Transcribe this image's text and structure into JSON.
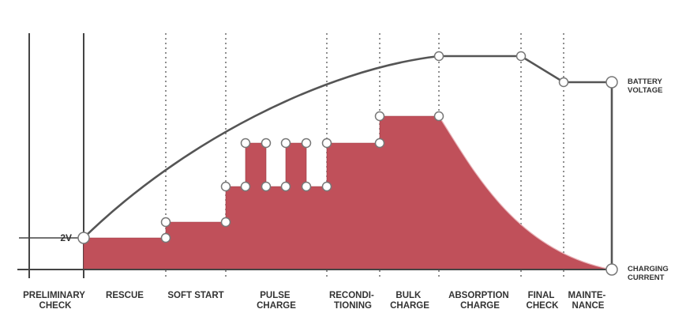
{
  "diagram": {
    "voltage_label": [
      "BATTERY",
      "VOLTAGE"
    ],
    "current_label": [
      "CHARGING",
      "CURRENT"
    ],
    "start_voltage_label": "2V",
    "stages": [
      {
        "id": "preliminary",
        "lines": [
          "PRELIMINARY",
          "CHECK"
        ]
      },
      {
        "id": "rescue",
        "lines": [
          "RESCUE"
        ]
      },
      {
        "id": "soft-start",
        "lines": [
          "SOFT START"
        ]
      },
      {
        "id": "pulse",
        "lines": [
          "PULSE",
          "CHARGE"
        ]
      },
      {
        "id": "reconditioning",
        "lines": [
          "RECONDI-",
          "TIONING"
        ]
      },
      {
        "id": "bulk",
        "lines": [
          "BULK",
          "CHARGE"
        ]
      },
      {
        "id": "absorption",
        "lines": [
          "ABSORPTION",
          "CHARGE"
        ]
      },
      {
        "id": "final-check",
        "lines": [
          "FINAL",
          "CHECK"
        ]
      },
      {
        "id": "maintenance",
        "lines": [
          "MAINTE-",
          "NANCE"
        ]
      }
    ],
    "colors": {
      "current_fill": "#c0505a",
      "line": "#555555",
      "axis": "#444444",
      "marker_fill": "#ffffff",
      "marker_stroke": "#777777",
      "text": "#333333"
    }
  }
}
